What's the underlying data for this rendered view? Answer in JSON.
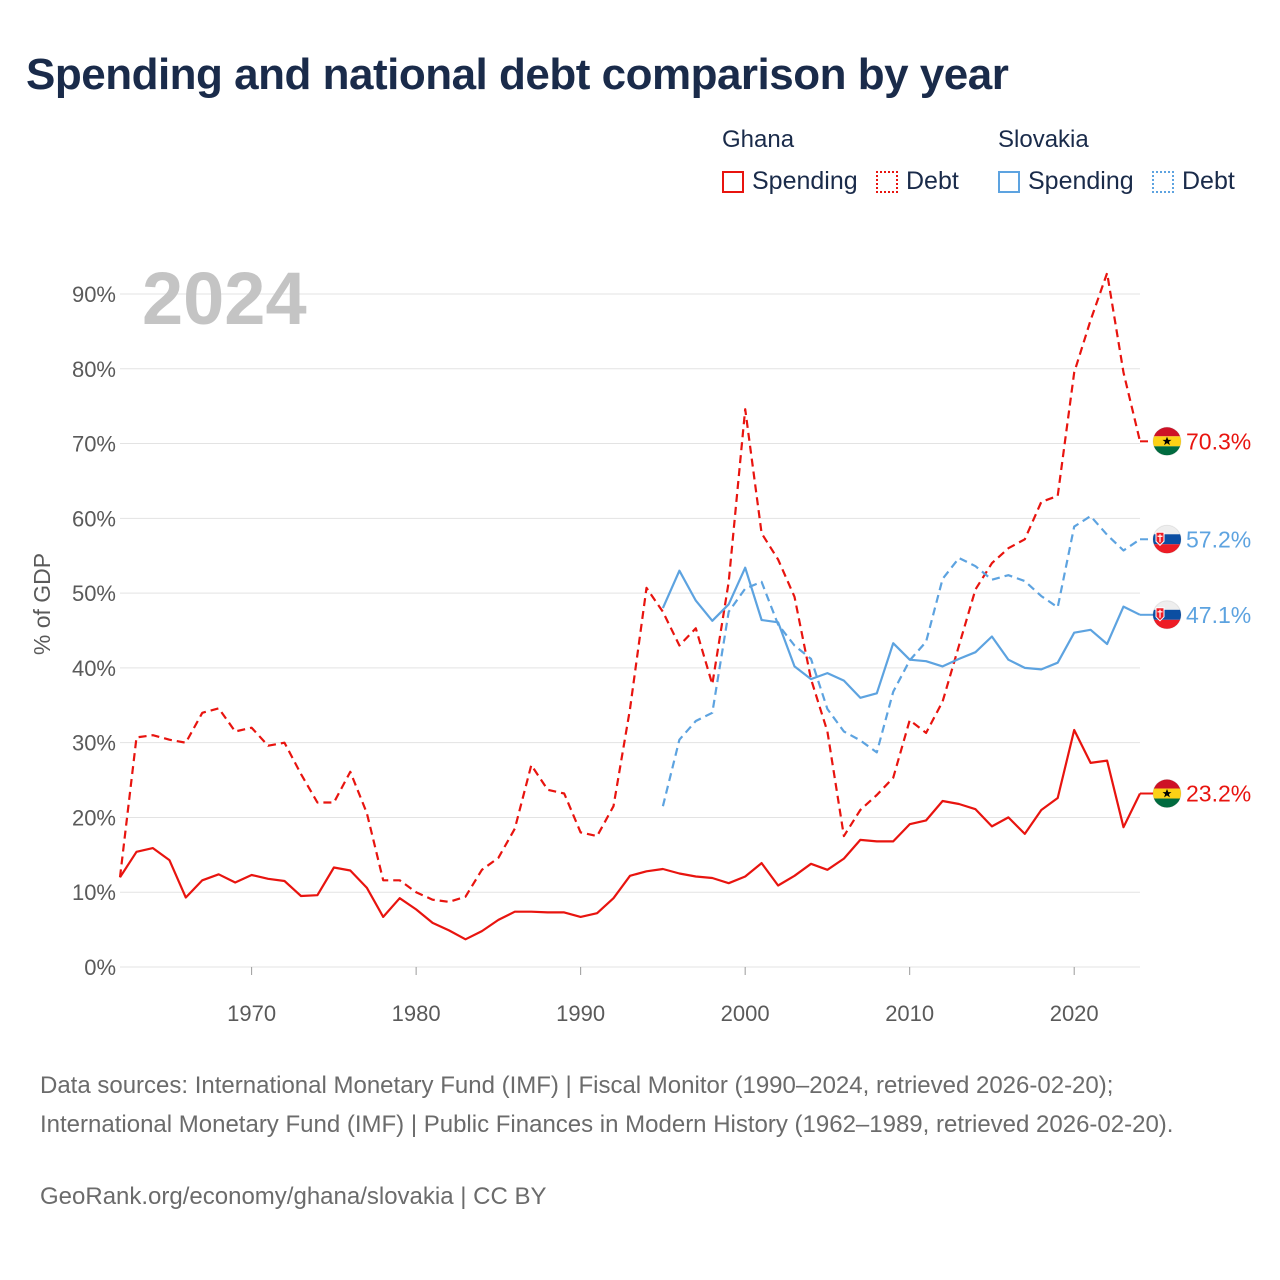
{
  "title": "Spending and national debt comparison by year",
  "legend": {
    "groups": [
      {
        "country": "Ghana",
        "items": [
          {
            "label": "Spending",
            "color": "#e8140f",
            "style": "solid"
          },
          {
            "label": "Debt",
            "color": "#e8140f",
            "style": "dotted"
          }
        ]
      },
      {
        "country": "Slovakia",
        "items": [
          {
            "label": "Spending",
            "color": "#5da3e0",
            "style": "solid"
          },
          {
            "label": "Debt",
            "color": "#5da3e0",
            "style": "dotted"
          }
        ]
      }
    ]
  },
  "sources": "Data sources: International Monetary Fund (IMF) | Fiscal Monitor (1990–2024, retrieved 2026-02-20); International Monetary Fund (IMF) | Public Finances in Modern History (1962–1989, retrieved 2026-02-20).",
  "credit": "GeoRank.org/economy/ghana/slovakia | CC BY",
  "chart_data": {
    "type": "line",
    "year_label": "2024",
    "ylabel": "% of GDP",
    "xlim": [
      1962,
      2024
    ],
    "ylim": [
      0,
      95
    ],
    "x_ticks": [
      1970,
      1980,
      1990,
      2000,
      2010,
      2020
    ],
    "y_ticks": [
      0,
      10,
      20,
      30,
      40,
      50,
      60,
      70,
      80,
      90
    ],
    "y_tick_labels": [
      "0%",
      "10%",
      "20%",
      "30%",
      "40%",
      "50%",
      "60%",
      "70%",
      "80%",
      "90%"
    ],
    "grid": true,
    "series": [
      {
        "name": "Ghana Debt",
        "country": "Ghana",
        "metric": "Debt",
        "color": "#e8140f",
        "dashed": true,
        "end_label": "70.3%",
        "flag": "ghana",
        "points": [
          [
            1962,
            12.0
          ],
          [
            1963,
            30.7
          ],
          [
            1964,
            31.0
          ],
          [
            1965,
            30.4
          ],
          [
            1966,
            30.0
          ],
          [
            1967,
            34.0
          ],
          [
            1968,
            34.6
          ],
          [
            1969,
            31.5
          ],
          [
            1970,
            32.0
          ],
          [
            1971,
            29.6
          ],
          [
            1972,
            30.0
          ],
          [
            1973,
            25.8
          ],
          [
            1974,
            22.0
          ],
          [
            1975,
            22.0
          ],
          [
            1976,
            26.1
          ],
          [
            1977,
            20.6
          ],
          [
            1978,
            11.6
          ],
          [
            1979,
            11.6
          ],
          [
            1980,
            10.0
          ],
          [
            1981,
            9.0
          ],
          [
            1982,
            8.7
          ],
          [
            1983,
            9.4
          ],
          [
            1984,
            13.0
          ],
          [
            1985,
            14.6
          ],
          [
            1986,
            18.5
          ],
          [
            1987,
            27.0
          ],
          [
            1988,
            23.7
          ],
          [
            1989,
            23.2
          ],
          [
            1990,
            18.0
          ],
          [
            1991,
            17.5
          ],
          [
            1992,
            21.5
          ],
          [
            1993,
            34.5
          ],
          [
            1994,
            50.7
          ],
          [
            1995,
            47.5
          ],
          [
            1996,
            43.0
          ],
          [
            1997,
            45.3
          ],
          [
            1998,
            37.8
          ],
          [
            1999,
            51.5
          ],
          [
            2000,
            74.6
          ],
          [
            2001,
            58.0
          ],
          [
            2002,
            54.5
          ],
          [
            2003,
            49.5
          ],
          [
            2004,
            38.5
          ],
          [
            2005,
            31.5
          ],
          [
            2006,
            17.5
          ],
          [
            2007,
            21.0
          ],
          [
            2008,
            23.0
          ],
          [
            2009,
            25.3
          ],
          [
            2010,
            33.0
          ],
          [
            2011,
            31.3
          ],
          [
            2012,
            35.5
          ],
          [
            2013,
            43.0
          ],
          [
            2014,
            50.5
          ],
          [
            2015,
            54.0
          ],
          [
            2016,
            56.0
          ],
          [
            2017,
            57.2
          ],
          [
            2018,
            62.2
          ],
          [
            2019,
            63.0
          ],
          [
            2020,
            79.5
          ],
          [
            2021,
            86.5
          ],
          [
            2022,
            92.8
          ],
          [
            2023,
            79.5
          ],
          [
            2024,
            70.3
          ]
        ]
      },
      {
        "name": "Ghana Spending",
        "country": "Ghana",
        "metric": "Spending",
        "color": "#e8140f",
        "dashed": false,
        "end_label": "23.2%",
        "flag": "ghana",
        "points": [
          [
            1962,
            12.0
          ],
          [
            1963,
            15.4
          ],
          [
            1964,
            15.9
          ],
          [
            1965,
            14.3
          ],
          [
            1966,
            9.3
          ],
          [
            1967,
            11.6
          ],
          [
            1968,
            12.4
          ],
          [
            1969,
            11.3
          ],
          [
            1970,
            12.3
          ],
          [
            1971,
            11.8
          ],
          [
            1972,
            11.5
          ],
          [
            1973,
            9.5
          ],
          [
            1974,
            9.6
          ],
          [
            1975,
            13.3
          ],
          [
            1976,
            12.9
          ],
          [
            1977,
            10.6
          ],
          [
            1978,
            6.7
          ],
          [
            1979,
            9.2
          ],
          [
            1980,
            7.7
          ],
          [
            1981,
            5.9
          ],
          [
            1982,
            4.9
          ],
          [
            1983,
            3.7
          ],
          [
            1984,
            4.8
          ],
          [
            1985,
            6.3
          ],
          [
            1986,
            7.4
          ],
          [
            1987,
            7.4
          ],
          [
            1988,
            7.3
          ],
          [
            1989,
            7.3
          ],
          [
            1990,
            6.7
          ],
          [
            1991,
            7.2
          ],
          [
            1992,
            9.2
          ],
          [
            1993,
            12.2
          ],
          [
            1994,
            12.8
          ],
          [
            1995,
            13.1
          ],
          [
            1996,
            12.5
          ],
          [
            1997,
            12.1
          ],
          [
            1998,
            11.9
          ],
          [
            1999,
            11.2
          ],
          [
            2000,
            12.1
          ],
          [
            2001,
            13.9
          ],
          [
            2002,
            10.9
          ],
          [
            2003,
            12.2
          ],
          [
            2004,
            13.8
          ],
          [
            2005,
            13.0
          ],
          [
            2006,
            14.5
          ],
          [
            2007,
            17.0
          ],
          [
            2008,
            16.8
          ],
          [
            2009,
            16.8
          ],
          [
            2010,
            19.1
          ],
          [
            2011,
            19.6
          ],
          [
            2012,
            22.2
          ],
          [
            2013,
            21.8
          ],
          [
            2014,
            21.1
          ],
          [
            2015,
            18.8
          ],
          [
            2016,
            20.0
          ],
          [
            2017,
            17.8
          ],
          [
            2018,
            21.0
          ],
          [
            2019,
            22.6
          ],
          [
            2020,
            31.7
          ],
          [
            2021,
            27.3
          ],
          [
            2022,
            27.6
          ],
          [
            2023,
            18.7
          ],
          [
            2024,
            23.2
          ]
        ]
      },
      {
        "name": "Slovakia Debt",
        "country": "Slovakia",
        "metric": "Debt",
        "color": "#5da3e0",
        "dashed": true,
        "end_label": "57.2%",
        "flag": "slovakia",
        "points": [
          [
            1995,
            21.5
          ],
          [
            1996,
            30.4
          ],
          [
            1997,
            32.9
          ],
          [
            1998,
            34.0
          ],
          [
            1999,
            47.5
          ],
          [
            2000,
            50.6
          ],
          [
            2001,
            51.5
          ],
          [
            2002,
            45.8
          ],
          [
            2003,
            43.0
          ],
          [
            2004,
            41.2
          ],
          [
            2005,
            34.5
          ],
          [
            2006,
            31.5
          ],
          [
            2007,
            30.3
          ],
          [
            2008,
            28.7
          ],
          [
            2009,
            36.8
          ],
          [
            2010,
            41.0
          ],
          [
            2011,
            43.5
          ],
          [
            2012,
            51.9
          ],
          [
            2013,
            54.7
          ],
          [
            2014,
            53.6
          ],
          [
            2015,
            51.8
          ],
          [
            2016,
            52.4
          ],
          [
            2017,
            51.6
          ],
          [
            2018,
            49.6
          ],
          [
            2019,
            48.1
          ],
          [
            2020,
            58.9
          ],
          [
            2021,
            60.3
          ],
          [
            2022,
            57.8
          ],
          [
            2023,
            55.7
          ],
          [
            2024,
            57.2
          ]
        ]
      },
      {
        "name": "Slovakia Spending",
        "country": "Slovakia",
        "metric": "Spending",
        "color": "#5da3e0",
        "dashed": false,
        "end_label": "47.1%",
        "flag": "slovakia",
        "points": [
          [
            1995,
            48.0
          ],
          [
            1996,
            53.0
          ],
          [
            1997,
            49.0
          ],
          [
            1998,
            46.3
          ],
          [
            1999,
            48.5
          ],
          [
            2000,
            53.4
          ],
          [
            2001,
            46.4
          ],
          [
            2002,
            46.1
          ],
          [
            2003,
            40.2
          ],
          [
            2004,
            38.5
          ],
          [
            2005,
            39.3
          ],
          [
            2006,
            38.3
          ],
          [
            2007,
            36.0
          ],
          [
            2008,
            36.6
          ],
          [
            2009,
            43.3
          ],
          [
            2010,
            41.1
          ],
          [
            2011,
            40.9
          ],
          [
            2012,
            40.2
          ],
          [
            2013,
            41.2
          ],
          [
            2014,
            42.1
          ],
          [
            2015,
            44.2
          ],
          [
            2016,
            41.1
          ],
          [
            2017,
            40.0
          ],
          [
            2018,
            39.8
          ],
          [
            2019,
            40.7
          ],
          [
            2020,
            44.7
          ],
          [
            2021,
            45.1
          ],
          [
            2022,
            43.2
          ],
          [
            2023,
            48.2
          ],
          [
            2024,
            47.1
          ]
        ]
      }
    ]
  }
}
